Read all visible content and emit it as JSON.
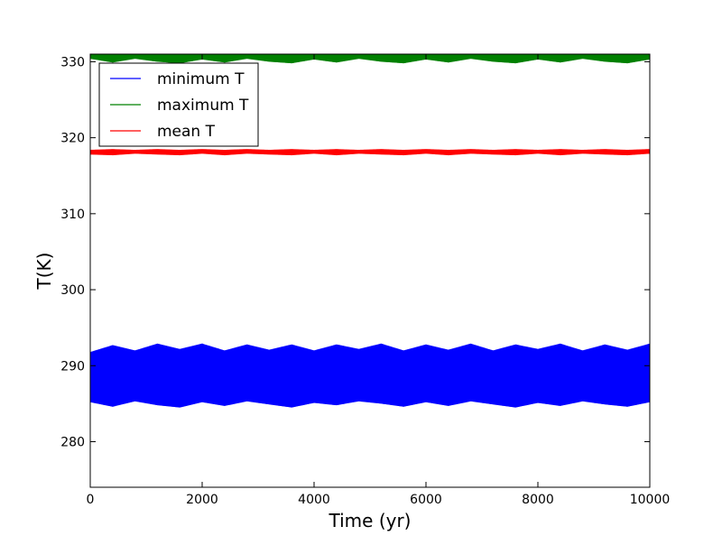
{
  "chart_data": {
    "type": "line",
    "title": "",
    "xlabel": "Time (yr)",
    "ylabel": "T(K)",
    "xlim": [
      0,
      10000
    ],
    "ylim": [
      274,
      331
    ],
    "xticks": [
      0,
      2000,
      4000,
      6000,
      8000,
      10000
    ],
    "xtick_labels": [
      "0",
      "2000",
      "4000",
      "6000",
      "8000",
      "10000"
    ],
    "yticks": [
      280,
      290,
      300,
      310,
      320,
      330
    ],
    "ytick_labels": [
      "280",
      "290",
      "300",
      "310",
      "320",
      "330"
    ],
    "grid": false,
    "legend_position": "top-left",
    "series": [
      {
        "name": "minimum T",
        "color": "#0000ff",
        "x": [
          0,
          400,
          800,
          1200,
          1600,
          2000,
          2400,
          2800,
          3200,
          3600,
          4000,
          4400,
          4800,
          5200,
          5600,
          6000,
          6400,
          6800,
          7200,
          7600,
          8000,
          8400,
          8800,
          9200,
          9600,
          10000
        ],
        "y_low": [
          285.2,
          284.6,
          285.3,
          284.8,
          284.5,
          285.2,
          284.7,
          285.3,
          284.9,
          284.5,
          285.1,
          284.8,
          285.3,
          285.0,
          284.6,
          285.2,
          284.7,
          285.3,
          284.9,
          284.5,
          285.1,
          284.7,
          285.3,
          284.9,
          284.6,
          285.2
        ],
        "y_high": [
          291.8,
          292.7,
          292.0,
          292.9,
          292.2,
          292.9,
          292.0,
          292.8,
          292.1,
          292.8,
          292.0,
          292.8,
          292.2,
          292.9,
          292.0,
          292.8,
          292.1,
          292.9,
          292.0,
          292.8,
          292.2,
          292.9,
          292.0,
          292.8,
          292.1,
          292.9
        ]
      },
      {
        "name": "maximum T",
        "color": "#008000",
        "x": [
          0,
          400,
          800,
          1200,
          1600,
          2000,
          2400,
          2800,
          3200,
          3600,
          4000,
          4400,
          4800,
          5200,
          5600,
          6000,
          6400,
          6800,
          7200,
          7600,
          8000,
          8400,
          8800,
          9200,
          9600,
          10000
        ],
        "y_low": [
          330.4,
          329.9,
          330.4,
          330.0,
          329.8,
          330.3,
          329.9,
          330.4,
          330.0,
          329.8,
          330.3,
          329.9,
          330.4,
          330.0,
          329.8,
          330.3,
          329.9,
          330.4,
          330.0,
          329.8,
          330.3,
          329.9,
          330.4,
          330.0,
          329.8,
          330.3
        ],
        "y_high": [
          331.0,
          331.0,
          331.0,
          331.0,
          331.0,
          331.0,
          331.0,
          331.0,
          331.0,
          331.0,
          331.0,
          331.0,
          331.0,
          331.0,
          331.0,
          331.0,
          331.0,
          331.0,
          331.0,
          331.0,
          331.0,
          331.0,
          331.0,
          331.0,
          331.0,
          331.0
        ]
      },
      {
        "name": "mean T",
        "color": "#ff0000",
        "x": [
          0,
          400,
          800,
          1200,
          1600,
          2000,
          2400,
          2800,
          3200,
          3600,
          4000,
          4400,
          4800,
          5200,
          5600,
          6000,
          6400,
          6800,
          7200,
          7600,
          8000,
          8400,
          8800,
          9200,
          9600,
          10000
        ],
        "y_low": [
          317.8,
          317.7,
          317.9,
          317.8,
          317.7,
          317.9,
          317.7,
          317.9,
          317.8,
          317.7,
          317.9,
          317.7,
          317.9,
          317.8,
          317.7,
          317.9,
          317.7,
          317.9,
          317.8,
          317.7,
          317.9,
          317.7,
          317.9,
          317.8,
          317.7,
          317.9
        ],
        "y_high": [
          318.4,
          318.5,
          318.4,
          318.5,
          318.4,
          318.5,
          318.4,
          318.5,
          318.4,
          318.5,
          318.4,
          318.5,
          318.4,
          318.5,
          318.4,
          318.5,
          318.4,
          318.5,
          318.4,
          318.5,
          318.4,
          318.5,
          318.4,
          318.5,
          318.4,
          318.5
        ]
      }
    ]
  }
}
